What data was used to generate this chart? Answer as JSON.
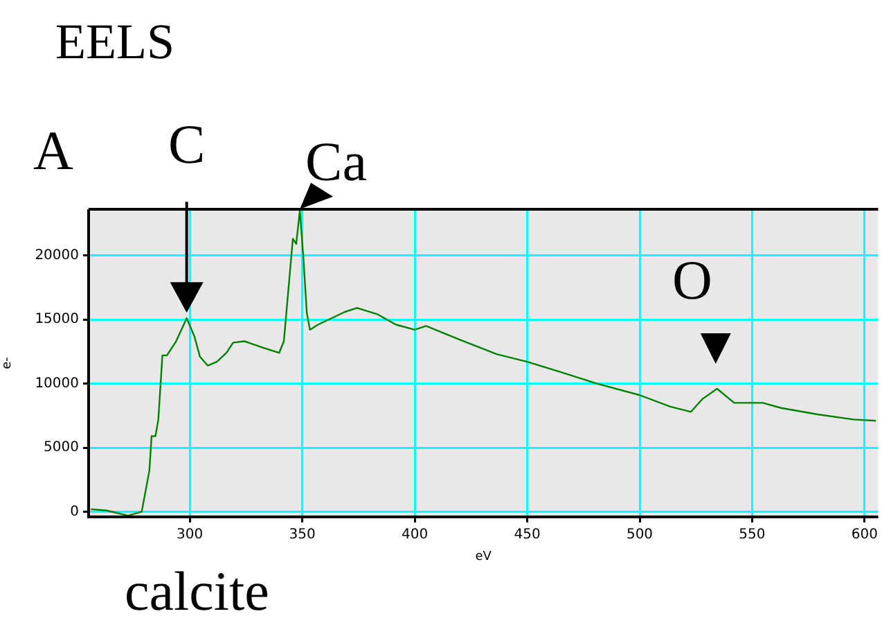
{
  "chart_data": {
    "type": "line",
    "title": "EELS",
    "xlabel": "eV",
    "ylabel": "e-",
    "xlim": [
      255,
      606
    ],
    "xticks": [
      300,
      350,
      400,
      450,
      500,
      550,
      600
    ],
    "ylim": [
      -400,
      23600
    ],
    "yticks": [
      0,
      5000,
      10000,
      15000,
      20000
    ],
    "grid": true,
    "marker": "none",
    "line_style": "solid",
    "annotations": [
      "A",
      {
        "text": "C",
        "x": 298.6,
        "y": 15100
      },
      {
        "text": "Ca",
        "x": 348.9,
        "y": 23500
      },
      {
        "text": "O",
        "x": 534.4,
        "y": 9600
      },
      "calcite"
    ],
    "series": [
      {
        "color": "#008000",
        "x": [
          256,
          263,
          272.5,
          278.6,
          282,
          283,
          284.7,
          286,
          287.8,
          289.8,
          293.9,
          298.6,
          302,
          304.5,
          308,
          312,
          316.3,
          319.3,
          324.4,
          332.6,
          339.7,
          341.8,
          343.8,
          345.8,
          347.3,
          348.9,
          350.5,
          352,
          353.4,
          357,
          363,
          369,
          374.3,
          383.5,
          391.6,
          400,
          405,
          420.3,
          436.4,
          450,
          464.8,
          481,
          500,
          513.6,
          522.8,
          527.9,
          534.4,
          542,
          550,
          554.7,
          562.8,
          579,
          595,
          605
        ],
        "values": [
          200,
          100,
          -300,
          0,
          3200,
          5900,
          5900,
          7200,
          12200,
          12200,
          13300,
          15100,
          13700,
          12100,
          11400,
          11700,
          12400,
          13200,
          13300,
          12800,
          12400,
          13300,
          17300,
          21300,
          20900,
          23500,
          19800,
          15500,
          14200,
          14600,
          15100,
          15600,
          15900,
          15400,
          14600,
          14200,
          14500,
          13400,
          12300,
          11700,
          10900,
          10000,
          9100,
          8200,
          7800,
          8800,
          9600,
          8500,
          8500,
          8500,
          8100,
          7600,
          7200,
          7100
        ]
      }
    ]
  }
}
